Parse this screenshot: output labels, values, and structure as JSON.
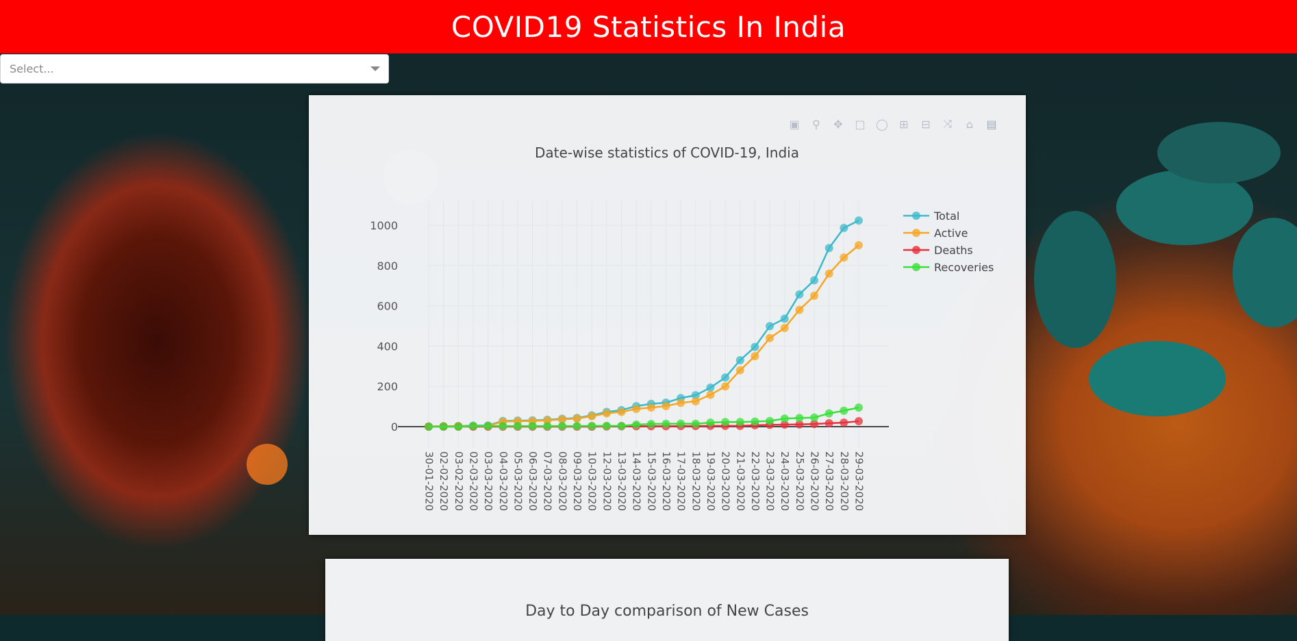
{
  "header": {
    "title": "COVID19 Statistics In India"
  },
  "dropdown": {
    "placeholder": "Select..."
  },
  "modebar": {
    "icons": [
      "camera-icon",
      "zoom-icon",
      "pan-icon",
      "box-select-icon",
      "lasso-select-icon",
      "zoom-in-icon",
      "zoom-out-icon",
      "autoscale-icon",
      "reset-axes-icon",
      "plotly-logo-icon"
    ]
  },
  "chart_data": {
    "type": "line",
    "title": "Date-wise statistics of COVID-19, India",
    "xlabel": "",
    "ylabel": "",
    "ylim": [
      -20,
      1120
    ],
    "yticks": [
      0,
      200,
      400,
      600,
      800,
      1000
    ],
    "grid": true,
    "legend_position": "top-right",
    "x": [
      "30-01-2020",
      "02-02-2020",
      "03-02-2020",
      "02-03-2020",
      "03-03-2020",
      "04-03-2020",
      "05-03-2020",
      "06-03-2020",
      "07-03-2020",
      "08-03-2020",
      "09-03-2020",
      "10-03-2020",
      "12-03-2020",
      "13-03-2020",
      "14-03-2020",
      "15-03-2020",
      "16-03-2020",
      "17-03-2020",
      "18-03-2020",
      "19-03-2020",
      "20-03-2020",
      "21-03-2020",
      "22-03-2020",
      "23-03-2020",
      "24-03-2020",
      "25-03-2020",
      "26-03-2020",
      "27-03-2020",
      "28-03-2020",
      "29-03-2020"
    ],
    "series": [
      {
        "name": "Total",
        "color": "#3bb9c9",
        "values": [
          1,
          2,
          3,
          5,
          6,
          28,
          30,
          31,
          34,
          39,
          43,
          56,
          73,
          82,
          102,
          113,
          119,
          142,
          156,
          194,
          244,
          330,
          396,
          499,
          536,
          657,
          727,
          887,
          987,
          1024
        ]
      },
      {
        "name": "Active",
        "color": "#f5a623",
        "values": [
          1,
          2,
          3,
          2,
          3,
          25,
          27,
          28,
          31,
          36,
          40,
          52,
          66,
          73,
          88,
          95,
          102,
          118,
          126,
          158,
          200,
          280,
          350,
          440,
          490,
          580,
          650,
          760,
          840,
          901
        ]
      },
      {
        "name": "Deaths",
        "color": "#e8303a",
        "values": [
          0,
          0,
          0,
          0,
          0,
          0,
          0,
          0,
          0,
          0,
          0,
          0,
          1,
          2,
          2,
          2,
          2,
          3,
          3,
          4,
          4,
          4,
          7,
          9,
          10,
          11,
          13,
          17,
          20,
          27
        ]
      },
      {
        "name": "Recoveries",
        "color": "#3ae03a",
        "values": [
          0,
          0,
          0,
          3,
          3,
          3,
          3,
          3,
          3,
          3,
          3,
          4,
          4,
          4,
          10,
          13,
          14,
          15,
          14,
          20,
          23,
          23,
          25,
          28,
          40,
          43,
          45,
          66,
          79,
          95
        ]
      }
    ]
  },
  "second_chart": {
    "title": "Day to Day comparison of New Cases"
  }
}
